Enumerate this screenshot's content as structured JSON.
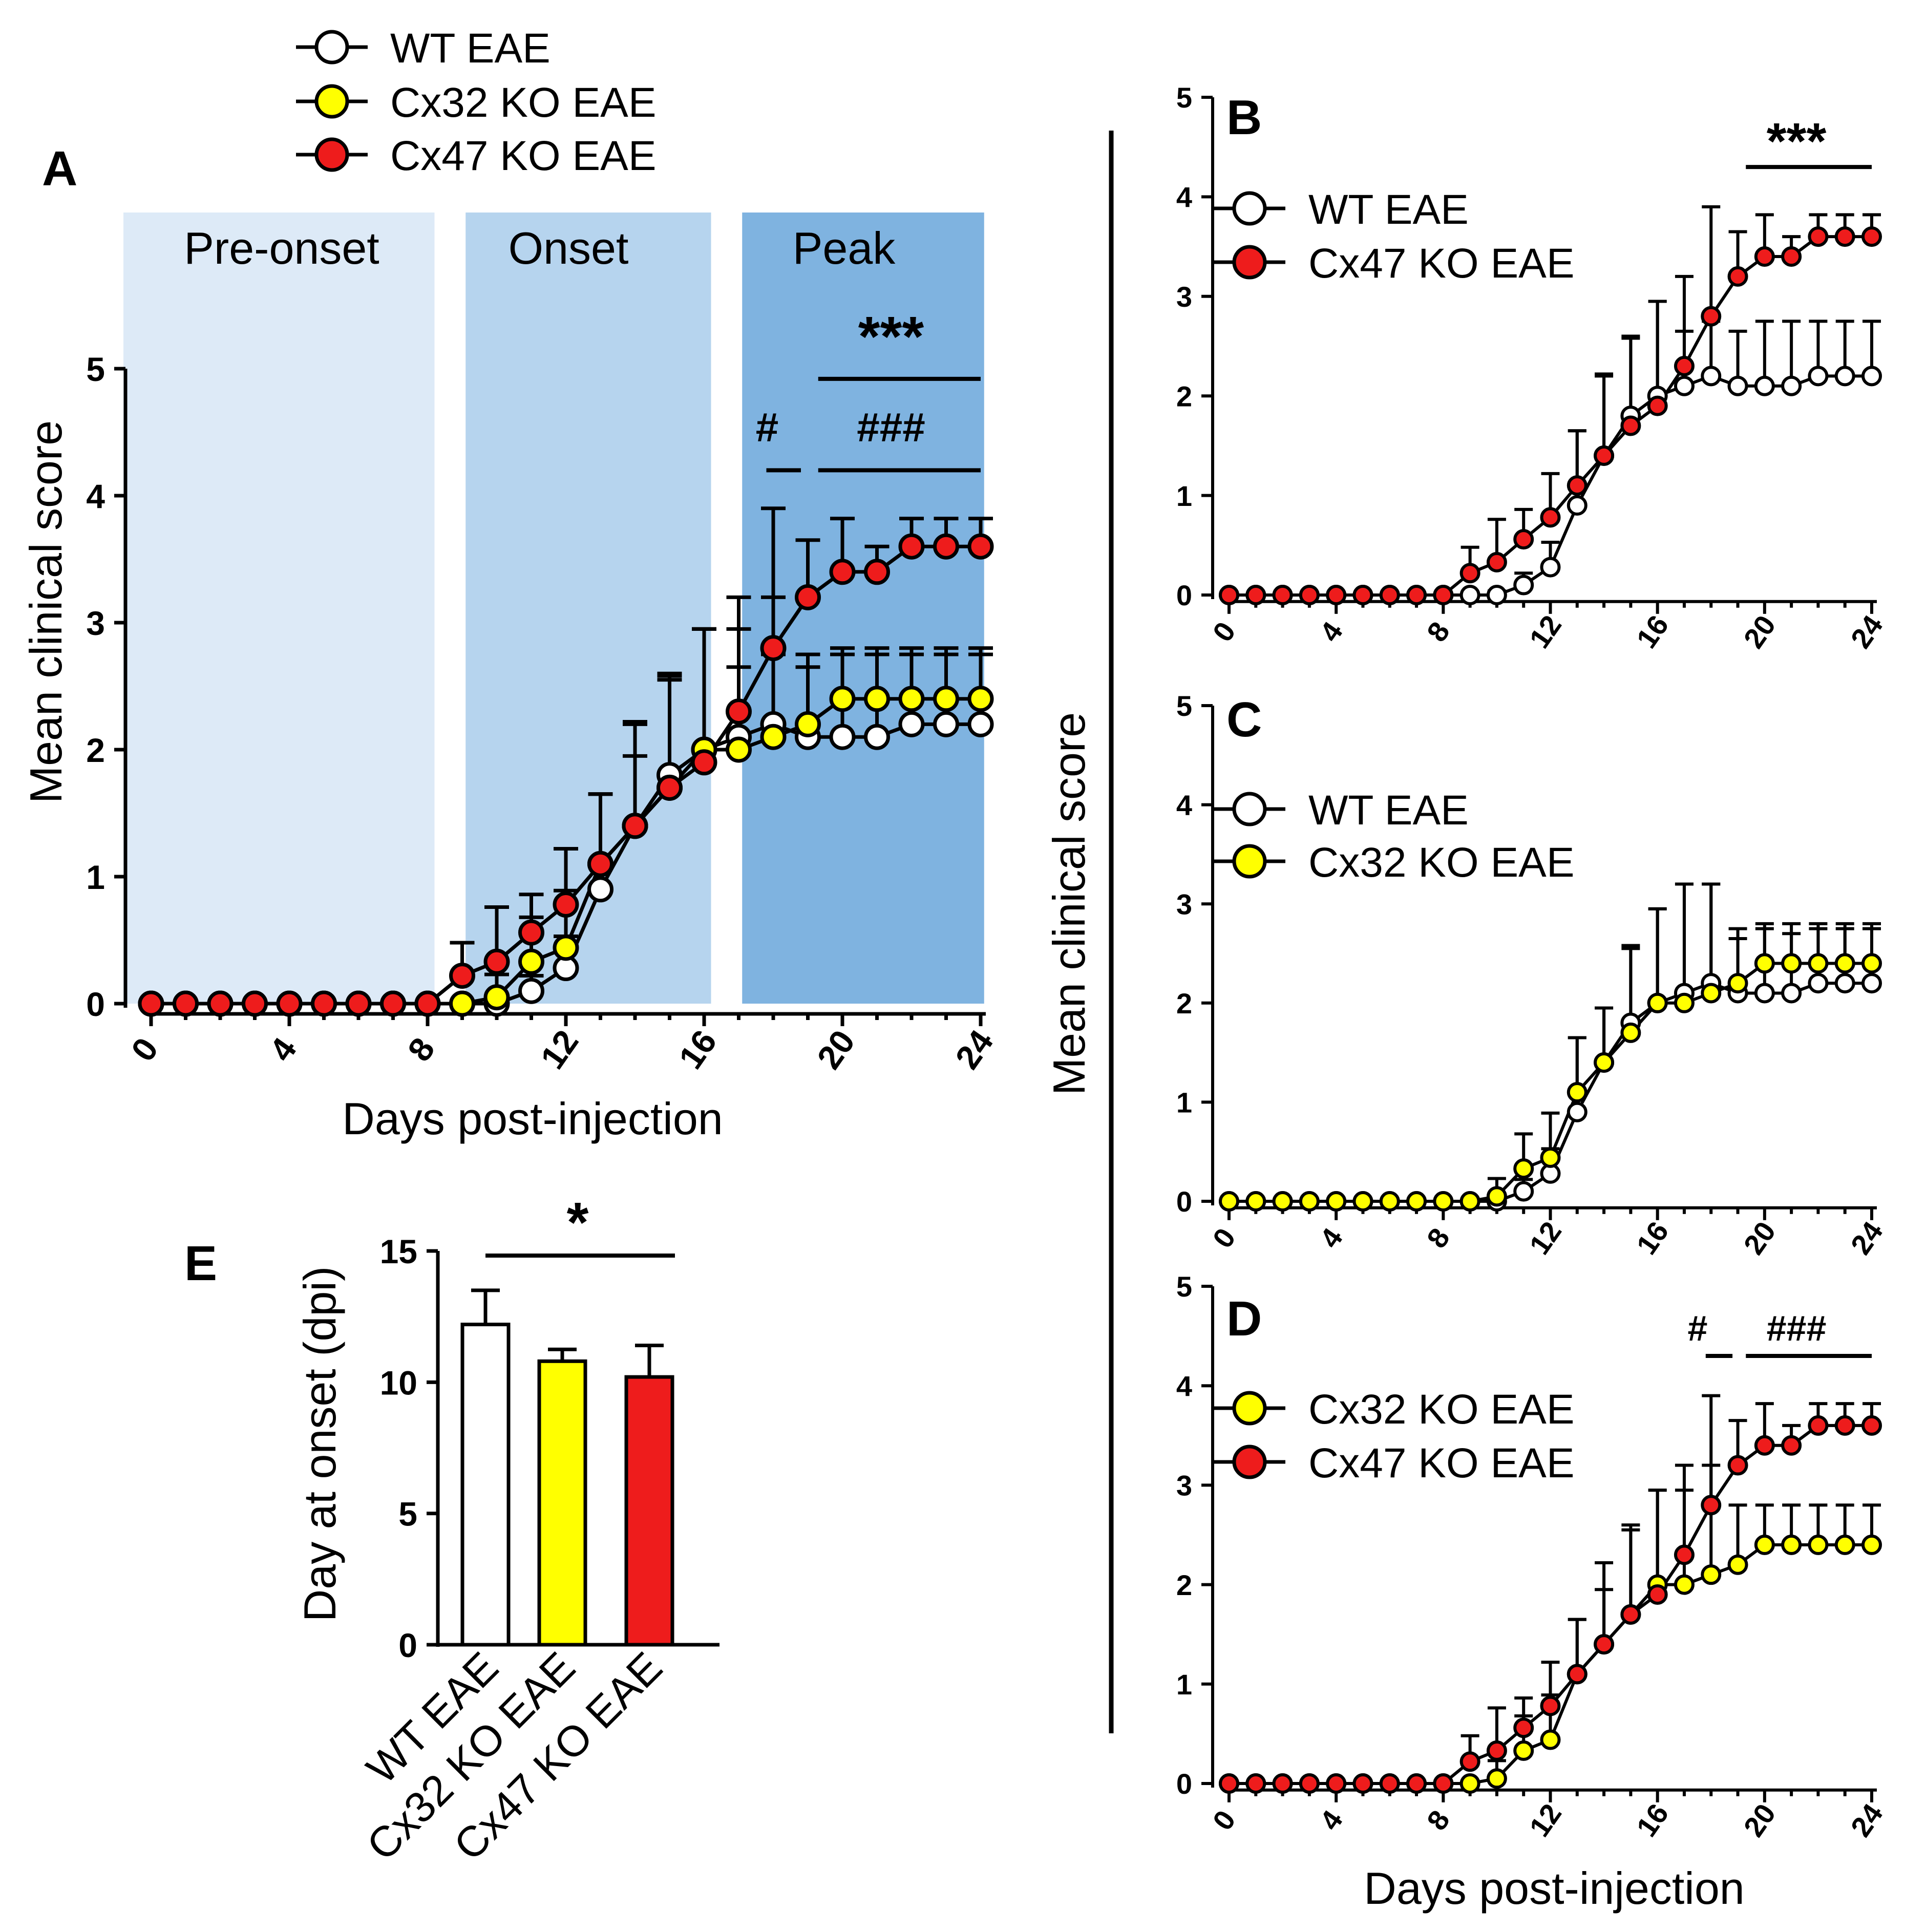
{
  "groups": {
    "wt": {
      "label": "WT EAE",
      "color": "#ffffff"
    },
    "cx32": {
      "label": "Cx32 KO EAE",
      "color": "#ffff00"
    },
    "cx47": {
      "label": "Cx47 KO EAE",
      "color": "#ee1c1c"
    }
  },
  "panelA": {
    "letter": "A",
    "phases": [
      "Pre-onset",
      "Onset",
      "Peak"
    ],
    "phase_colors": [
      "#ddeaf7",
      "#b6d4ee",
      "#7fb3e0"
    ],
    "sig_star": "***",
    "sig_hash1": "#",
    "sig_hash3": "###"
  },
  "panelB": {
    "letter": "B",
    "sig_star": "***"
  },
  "panelC": {
    "letter": "C"
  },
  "panelD": {
    "letter": "D",
    "sig_hash1": "#",
    "sig_hash3": "###"
  },
  "panelE": {
    "letter": "E",
    "sig_star": "*"
  },
  "shared_ylabel": "Mean clinical score",
  "chart_data": [
    {
      "panel": "A",
      "type": "line",
      "title": "",
      "xlabel": "Days post-injection",
      "ylabel": "Mean clinical score",
      "xlim": [
        0,
        24
      ],
      "ylim": [
        0,
        5
      ],
      "xticks": [
        0,
        4,
        8,
        12,
        16,
        20,
        24
      ],
      "yticks": [
        0,
        1,
        2,
        3,
        4,
        5
      ],
      "x": [
        0,
        1,
        2,
        3,
        4,
        5,
        6,
        7,
        8,
        9,
        10,
        11,
        12,
        13,
        14,
        15,
        16,
        17,
        18,
        19,
        20,
        21,
        22,
        23,
        24
      ],
      "legend_location": "top-left, above plot",
      "series": [
        {
          "name": "WT EAE",
          "values": [
            0,
            0,
            0,
            0,
            0,
            0,
            0,
            0,
            0,
            0,
            0,
            0.1,
            0.28,
            0.9,
            1.4,
            1.8,
            2.0,
            2.1,
            2.2,
            2.1,
            2.1,
            2.1,
            2.2,
            2.2,
            2.2
          ],
          "errors": [
            0,
            0,
            0,
            0,
            0,
            0,
            0,
            0,
            0,
            0,
            0.04,
            0.12,
            0.25,
            0.75,
            0.8,
            0.78,
            0.95,
            0.55,
            0.55,
            0.55,
            0.65,
            0.65,
            0.55,
            0.55,
            0.55
          ]
        },
        {
          "name": "Cx32 KO EAE",
          "values": [
            0,
            0,
            0,
            0,
            0,
            0,
            0,
            0,
            0,
            0,
            0.05,
            0.33,
            0.44,
            1.1,
            1.4,
            1.7,
            2.0,
            2.0,
            2.1,
            2.2,
            2.4,
            2.4,
            2.4,
            2.4,
            2.4
          ],
          "errors": [
            0,
            0,
            0,
            0,
            0,
            0,
            0,
            0,
            0,
            0,
            0.18,
            0.35,
            0.45,
            0.55,
            0.55,
            0.85,
            0.95,
            0.95,
            1.1,
            0.55,
            0.4,
            0.4,
            0.4,
            0.4,
            0.4
          ]
        },
        {
          "name": "Cx47 KO EAE",
          "values": [
            0,
            0,
            0,
            0,
            0,
            0,
            0,
            0,
            0,
            0.22,
            0.33,
            0.56,
            0.78,
            1.1,
            1.4,
            1.7,
            1.9,
            2.3,
            2.8,
            3.2,
            3.4,
            3.4,
            3.6,
            3.6,
            3.6
          ],
          "errors": [
            0,
            0,
            0,
            0,
            0,
            0,
            0,
            0,
            0,
            0.26,
            0.43,
            0.3,
            0.44,
            0.55,
            0.82,
            0.9,
            1.05,
            0.9,
            1.1,
            0.45,
            0.42,
            0.2,
            0.22,
            0.22,
            0.22
          ]
        }
      ]
    },
    {
      "panel": "B",
      "type": "line",
      "xlabel": "",
      "ylabel": "Mean clinical score",
      "xlim": [
        0,
        24
      ],
      "ylim": [
        0,
        5
      ],
      "xticks": [
        0,
        4,
        8,
        12,
        16,
        20,
        24
      ],
      "yticks": [
        0,
        1,
        2,
        3,
        4,
        5
      ],
      "x": [
        0,
        1,
        2,
        3,
        4,
        5,
        6,
        7,
        8,
        9,
        10,
        11,
        12,
        13,
        14,
        15,
        16,
        17,
        18,
        19,
        20,
        21,
        22,
        23,
        24
      ],
      "legend_location": "top-left",
      "series": [
        {
          "name": "WT EAE",
          "values": [
            0,
            0,
            0,
            0,
            0,
            0,
            0,
            0,
            0,
            0,
            0,
            0.1,
            0.28,
            0.9,
            1.4,
            1.8,
            2.0,
            2.1,
            2.2,
            2.1,
            2.1,
            2.1,
            2.2,
            2.2,
            2.2
          ],
          "errors": [
            0,
            0,
            0,
            0,
            0,
            0,
            0,
            0,
            0,
            0,
            0.04,
            0.12,
            0.25,
            0.75,
            0.8,
            0.78,
            0.95,
            0.55,
            0.55,
            0.55,
            0.65,
            0.65,
            0.55,
            0.55,
            0.55
          ]
        },
        {
          "name": "Cx47 KO EAE",
          "values": [
            0,
            0,
            0,
            0,
            0,
            0,
            0,
            0,
            0,
            0.22,
            0.33,
            0.56,
            0.78,
            1.1,
            1.4,
            1.7,
            1.9,
            2.3,
            2.8,
            3.2,
            3.4,
            3.4,
            3.6,
            3.6,
            3.6
          ],
          "errors": [
            0,
            0,
            0,
            0,
            0,
            0,
            0,
            0,
            0,
            0.26,
            0.43,
            0.3,
            0.44,
            0.55,
            0.82,
            0.9,
            1.05,
            0.9,
            1.1,
            0.45,
            0.42,
            0.2,
            0.22,
            0.22,
            0.22
          ]
        }
      ]
    },
    {
      "panel": "C",
      "type": "line",
      "xlabel": "",
      "ylabel": "Mean clinical score",
      "xlim": [
        0,
        24
      ],
      "ylim": [
        0,
        5
      ],
      "xticks": [
        0,
        4,
        8,
        12,
        16,
        20,
        24
      ],
      "yticks": [
        0,
        1,
        2,
        3,
        4,
        5
      ],
      "x": [
        0,
        1,
        2,
        3,
        4,
        5,
        6,
        7,
        8,
        9,
        10,
        11,
        12,
        13,
        14,
        15,
        16,
        17,
        18,
        19,
        20,
        21,
        22,
        23,
        24
      ],
      "legend_location": "top-left",
      "series": [
        {
          "name": "WT EAE",
          "values": [
            0,
            0,
            0,
            0,
            0,
            0,
            0,
            0,
            0,
            0,
            0,
            0.1,
            0.28,
            0.9,
            1.4,
            1.8,
            2.0,
            2.1,
            2.2,
            2.1,
            2.1,
            2.1,
            2.2,
            2.2,
            2.2
          ],
          "errors": [
            0,
            0,
            0,
            0,
            0,
            0,
            0,
            0,
            0,
            0,
            0.04,
            0.12,
            0.25,
            0.75,
            0.55,
            0.78,
            0.95,
            1.1,
            1.0,
            0.55,
            0.65,
            0.6,
            0.55,
            0.55,
            0.55
          ]
        },
        {
          "name": "Cx32 KO EAE",
          "values": [
            0,
            0,
            0,
            0,
            0,
            0,
            0,
            0,
            0,
            0,
            0.05,
            0.33,
            0.44,
            1.1,
            1.4,
            1.7,
            2.0,
            2.0,
            2.1,
            2.2,
            2.4,
            2.4,
            2.4,
            2.4,
            2.4
          ],
          "errors": [
            0,
            0,
            0,
            0,
            0,
            0,
            0,
            0,
            0,
            0,
            0.18,
            0.35,
            0.45,
            0.55,
            0.55,
            0.85,
            0.95,
            1.2,
            1.1,
            0.55,
            0.4,
            0.4,
            0.4,
            0.4,
            0.4
          ]
        }
      ]
    },
    {
      "panel": "D",
      "type": "line",
      "xlabel": "Days post-injection",
      "ylabel": "Mean clinical score",
      "xlim": [
        0,
        24
      ],
      "ylim": [
        0,
        5
      ],
      "xticks": [
        0,
        4,
        8,
        12,
        16,
        20,
        24
      ],
      "yticks": [
        0,
        1,
        2,
        3,
        4,
        5
      ],
      "x": [
        0,
        1,
        2,
        3,
        4,
        5,
        6,
        7,
        8,
        9,
        10,
        11,
        12,
        13,
        14,
        15,
        16,
        17,
        18,
        19,
        20,
        21,
        22,
        23,
        24
      ],
      "legend_location": "top-left",
      "series": [
        {
          "name": "Cx32 KO EAE",
          "values": [
            0,
            0,
            0,
            0,
            0,
            0,
            0,
            0,
            0,
            0,
            0.05,
            0.33,
            0.44,
            1.1,
            1.4,
            1.7,
            2.0,
            2.0,
            2.1,
            2.2,
            2.4,
            2.4,
            2.4,
            2.4,
            2.4
          ],
          "errors": [
            0,
            0,
            0,
            0,
            0,
            0,
            0,
            0,
            0,
            0,
            0.18,
            0.35,
            0.45,
            0.55,
            0.55,
            0.85,
            0.95,
            0.95,
            1.1,
            0.6,
            0.4,
            0.4,
            0.4,
            0.4,
            0.4
          ]
        },
        {
          "name": "Cx47 KO EAE",
          "values": [
            0,
            0,
            0,
            0,
            0,
            0,
            0,
            0,
            0,
            0.22,
            0.33,
            0.56,
            0.78,
            1.1,
            1.4,
            1.7,
            1.9,
            2.3,
            2.8,
            3.2,
            3.4,
            3.4,
            3.6,
            3.6,
            3.6
          ],
          "errors": [
            0,
            0,
            0,
            0,
            0,
            0,
            0,
            0,
            0,
            0.26,
            0.43,
            0.3,
            0.44,
            0.55,
            0.82,
            0.9,
            1.05,
            0.9,
            1.1,
            0.45,
            0.42,
            0.2,
            0.22,
            0.22,
            0.22
          ]
        }
      ]
    },
    {
      "panel": "E",
      "type": "bar",
      "xlabel": "",
      "ylabel": "Day at onset (dpi)",
      "ylim": [
        0,
        15
      ],
      "yticks": [
        0,
        5,
        10,
        15
      ],
      "categories": [
        "WT EAE",
        "Cx32 KO EAE",
        "Cx47 KO EAE"
      ],
      "values": [
        12.2,
        10.8,
        10.2
      ],
      "errors": [
        1.3,
        0.45,
        1.2
      ]
    }
  ]
}
